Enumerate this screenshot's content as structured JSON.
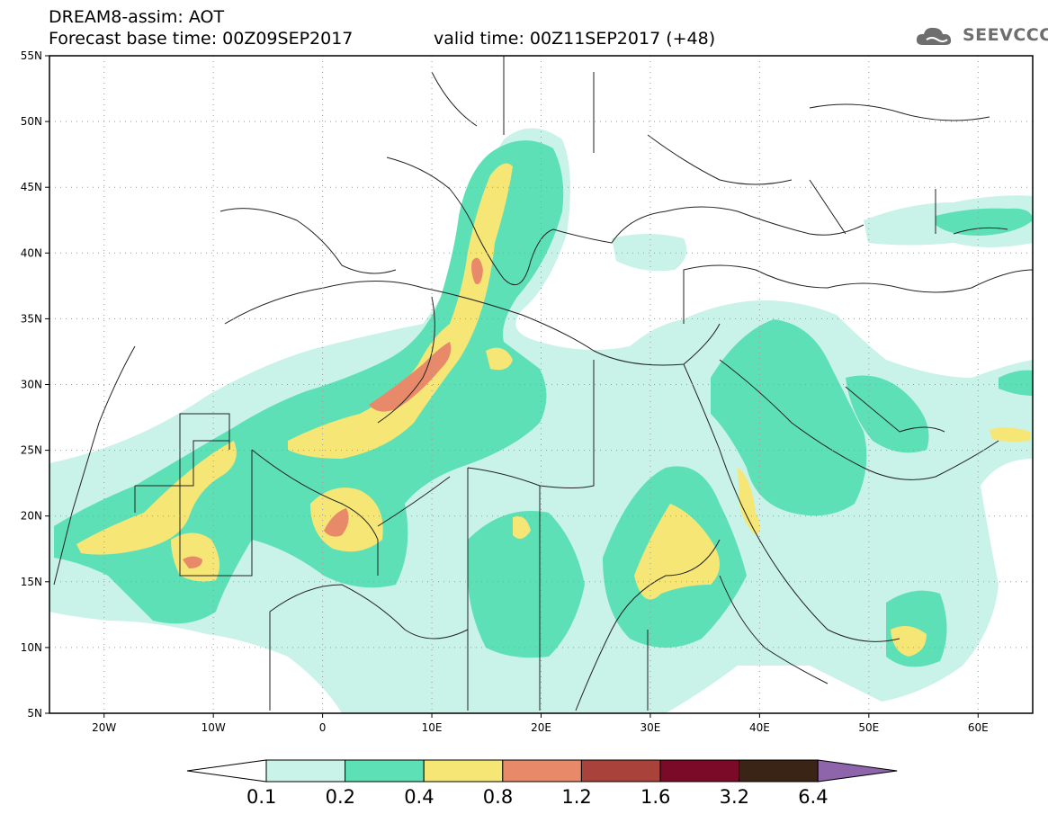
{
  "header": {
    "line1": "DREAM8-assim: AOT",
    "base_time": "Forecast base time: 00Z09SEP2017",
    "valid_time": "valid time: 00Z11SEP2017 (+48)",
    "logo_text": "SEEVCCC"
  },
  "axes": {
    "lat_labels": [
      "55N",
      "50N",
      "45N",
      "40N",
      "35N",
      "30N",
      "25N",
      "20N",
      "15N",
      "10N",
      "5N"
    ],
    "lon_labels": [
      "20W",
      "10W",
      "0",
      "10E",
      "20E",
      "30E",
      "40E",
      "50E",
      "60E"
    ]
  },
  "colorbar": {
    "colors": [
      "#c9f2e8",
      "#5ee0b6",
      "#f5e675",
      "#e88a6a",
      "#a9423a",
      "#7a0a28",
      "#3a2416",
      "#8e64aa"
    ],
    "labels": [
      "0.1",
      "0.2",
      "0.4",
      "0.8",
      "1.2",
      "1.6",
      "3.2",
      "6.4"
    ]
  },
  "colors": {
    "level_0_1": "#c9f2e8",
    "level_0_2": "#5ee0b6",
    "level_0_4": "#f5e675",
    "level_0_8": "#e88a6a",
    "border": "#222222",
    "grid": "#9a9a9a"
  }
}
